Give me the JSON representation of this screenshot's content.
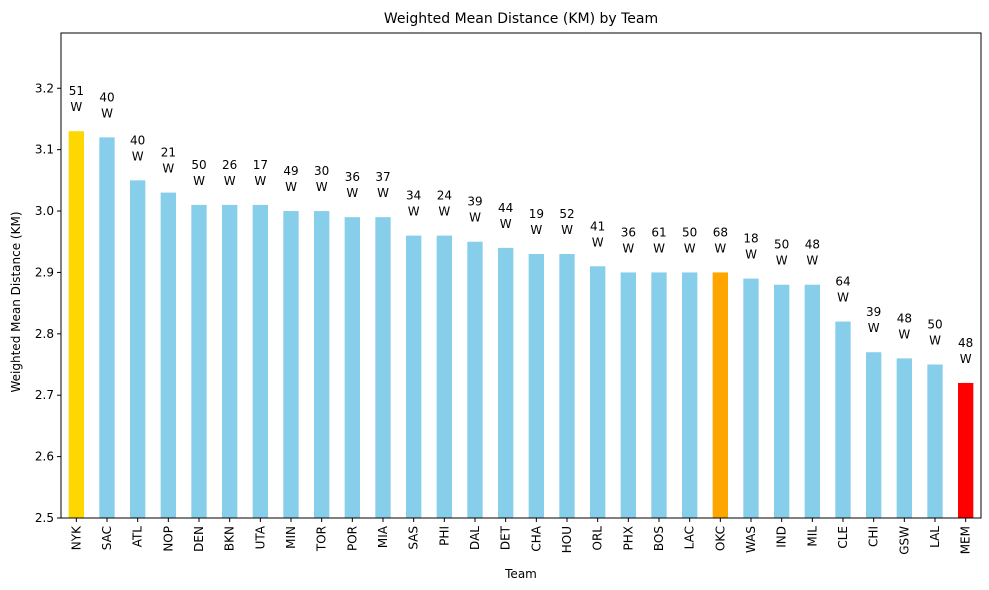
{
  "chart_data": {
    "type": "bar",
    "title": "Weighted Mean Distance (KM) by Team",
    "xlabel": "Team",
    "ylabel": "Weighted Mean Distance (KM)",
    "ylim": [
      2.5,
      3.29
    ],
    "yticks": [
      "2.5",
      "2.6",
      "2.7",
      "2.8",
      "2.9",
      "3.0",
      "3.1",
      "3.2"
    ],
    "grid": false,
    "categories": [
      "NYK",
      "SAC",
      "ATL",
      "NOP",
      "DEN",
      "BKN",
      "UTA",
      "MIN",
      "TOR",
      "POR",
      "MIA",
      "SAS",
      "PHI",
      "DAL",
      "DET",
      "CHA",
      "HOU",
      "ORL",
      "PHX",
      "BOS",
      "LAC",
      "OKC",
      "WAS",
      "IND",
      "MIL",
      "CLE",
      "CHI",
      "GSW",
      "LAL",
      "MEM"
    ],
    "values": [
      3.13,
      3.12,
      3.05,
      3.03,
      3.01,
      3.01,
      3.01,
      3.0,
      3.0,
      2.99,
      2.99,
      2.96,
      2.96,
      2.95,
      2.94,
      2.93,
      2.93,
      2.91,
      2.9,
      2.9,
      2.9,
      2.9,
      2.89,
      2.88,
      2.88,
      2.82,
      2.77,
      2.76,
      2.75,
      2.72
    ],
    "annotations": [
      [
        "51",
        "W"
      ],
      [
        "40",
        "W"
      ],
      [
        "40",
        "W"
      ],
      [
        "21",
        "W"
      ],
      [
        "50",
        "W"
      ],
      [
        "26",
        "W"
      ],
      [
        "17",
        "W"
      ],
      [
        "49",
        "W"
      ],
      [
        "30",
        "W"
      ],
      [
        "36",
        "W"
      ],
      [
        "37",
        "W"
      ],
      [
        "34",
        "W"
      ],
      [
        "24",
        "W"
      ],
      [
        "39",
        "W"
      ],
      [
        "44",
        "W"
      ],
      [
        "19",
        "W"
      ],
      [
        "52",
        "W"
      ],
      [
        "41",
        "W"
      ],
      [
        "36",
        "W"
      ],
      [
        "61",
        "W"
      ],
      [
        "50",
        "W"
      ],
      [
        "68",
        "W"
      ],
      [
        "18",
        "W"
      ],
      [
        "50",
        "W"
      ],
      [
        "48",
        "W"
      ],
      [
        "64",
        "W"
      ],
      [
        "39",
        "W"
      ],
      [
        "48",
        "W"
      ],
      [
        "50",
        "W"
      ],
      [
        "48",
        "W"
      ]
    ],
    "colors": {
      "default": "#87ceeb",
      "NYK": "#ffd700",
      "OKC": "#ffa500",
      "MEM": "#ff0000"
    }
  }
}
